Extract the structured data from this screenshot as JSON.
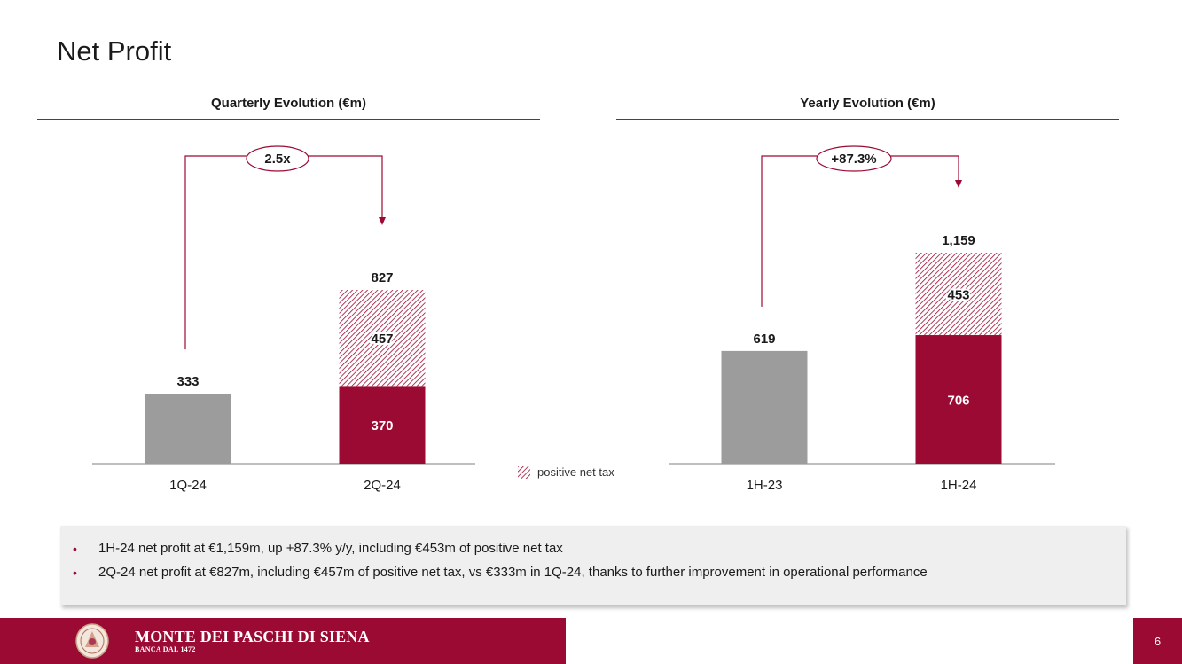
{
  "page": {
    "title": "Net Profit",
    "page_number": "6"
  },
  "colors": {
    "brand": "#9b0a33",
    "grey_bar": "#9c9c9c",
    "axis": "#7f7f7f"
  },
  "legend": {
    "label": "positive net tax",
    "swatch": "hatched-brand-red"
  },
  "chart_data": [
    {
      "type": "bar",
      "stacked": true,
      "title": "Quarterly Evolution (€m)",
      "categories": [
        "1Q-24",
        "2Q-24"
      ],
      "totals": [
        "333",
        "827"
      ],
      "segments": [
        {
          "category": "1Q-24",
          "base": 333,
          "net_tax": 0,
          "base_label": "",
          "net_tax_label": ""
        },
        {
          "category": "2Q-24",
          "base": 370,
          "net_tax": 457,
          "base_label": "370",
          "net_tax_label": "457"
        }
      ],
      "change_label": "2.5x",
      "ylim": [
        0,
        827
      ]
    },
    {
      "type": "bar",
      "stacked": true,
      "title": "Yearly Evolution (€m)",
      "categories": [
        "1H-23",
        "1H-24"
      ],
      "totals": [
        "619",
        "1,159"
      ],
      "segments": [
        {
          "category": "1H-23",
          "base": 619,
          "net_tax": 0,
          "base_label": "",
          "net_tax_label": ""
        },
        {
          "category": "1H-24",
          "base": 706,
          "net_tax": 453,
          "base_label": "706",
          "net_tax_label": "453"
        }
      ],
      "change_label": "+87.3%",
      "ylim": [
        0,
        1159
      ]
    }
  ],
  "bullets": [
    "1H-24 net profit at €1,159m, up +87.3% y/y, including €453m of positive net tax",
    "2Q-24 net profit at €827m, including €457m of positive net tax, vs €333m in 1Q-24, thanks to further improvement in operational performance"
  ],
  "footer": {
    "brand": "MONTE DEI PASCHI DI SIENA",
    "tagline": "BANCA DAL 1472"
  }
}
